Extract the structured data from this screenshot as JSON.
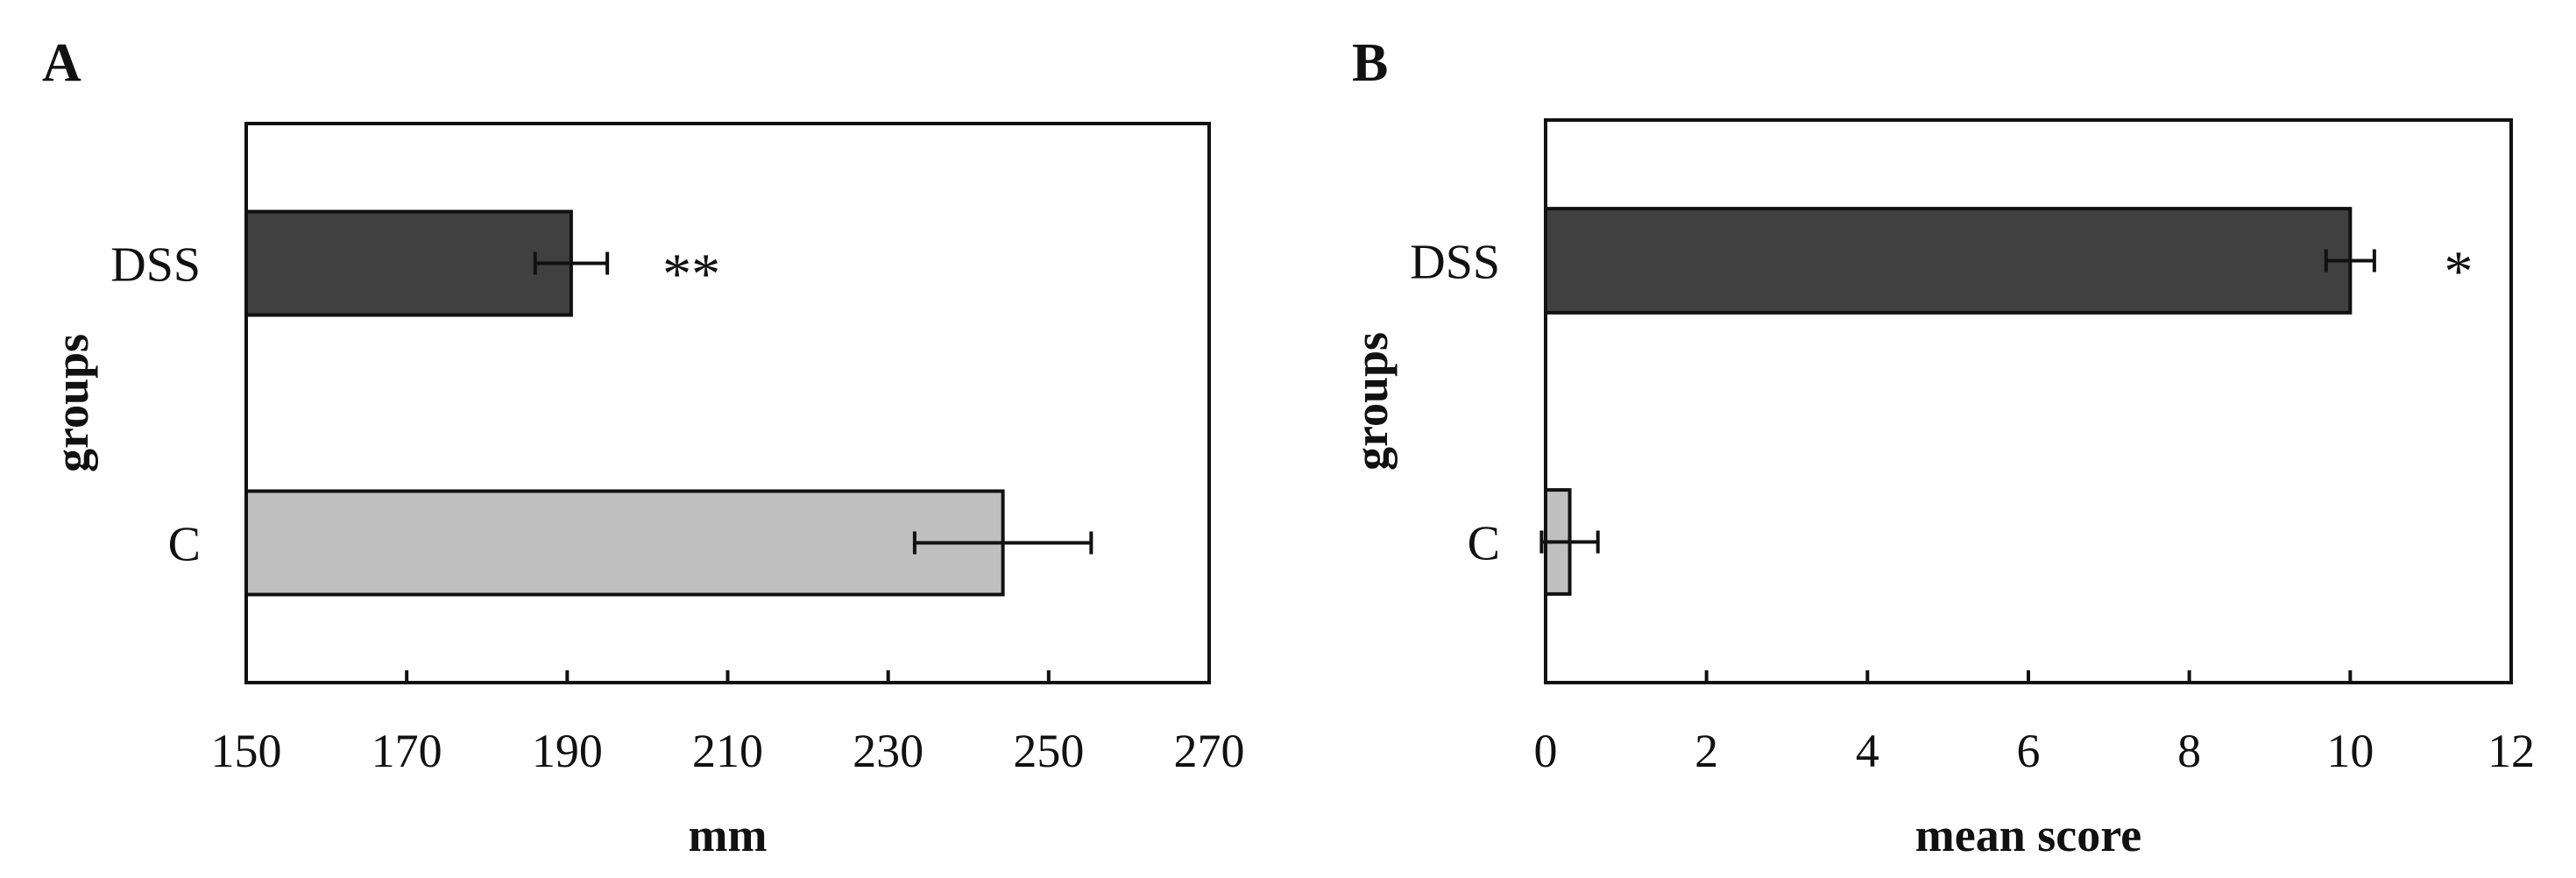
{
  "chart_data": [
    {
      "panel": "A",
      "type": "bar",
      "orientation": "horizontal",
      "categories": [
        "DSS",
        "C"
      ],
      "series": [
        {
          "values": [
            190.5,
            244.3
          ],
          "errors": [
            4.5,
            11
          ],
          "colors": [
            "#404040",
            "#c0c0c0"
          ]
        }
      ],
      "significance": [
        "**",
        ""
      ],
      "xlabel": "mm",
      "ylabel": "groups",
      "xlim": [
        150,
        270
      ],
      "xticks": [
        150,
        170,
        190,
        210,
        230,
        250,
        270
      ],
      "grid": false
    },
    {
      "panel": "B",
      "type": "bar",
      "orientation": "horizontal",
      "categories": [
        "DSS",
        "C"
      ],
      "series": [
        {
          "values": [
            10,
            0.3
          ],
          "errors": [
            0.3,
            0.35
          ],
          "colors": [
            "#404040",
            "#c0c0c0"
          ]
        }
      ],
      "significance": [
        "*",
        ""
      ],
      "xlabel": "mean score",
      "ylabel": "groups",
      "xlim": [
        0,
        12
      ],
      "xticks": [
        0,
        2,
        4,
        6,
        8,
        10,
        12
      ],
      "grid": false
    }
  ]
}
